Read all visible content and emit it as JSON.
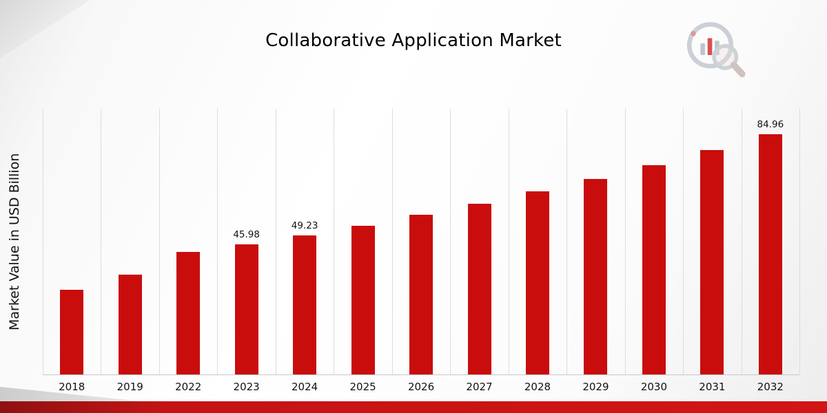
{
  "page": {
    "title": "Collaborative Application Market"
  },
  "chart_data": {
    "type": "bar",
    "title": "Collaborative Application Market",
    "xlabel": "",
    "ylabel": "Market Value in USD Billion",
    "categories": [
      "2018",
      "2019",
      "2022",
      "2023",
      "2024",
      "2025",
      "2026",
      "2027",
      "2028",
      "2029",
      "2030",
      "2031",
      "2032"
    ],
    "values": [
      29.9,
      35.2,
      43.3,
      45.98,
      49.23,
      52.7,
      56.4,
      60.4,
      64.7,
      69.2,
      74.1,
      79.3,
      84.96
    ],
    "point_labels": [
      "",
      "",
      "",
      "45.98",
      "49.23",
      "",
      "",
      "",
      "",
      "",
      "",
      "",
      "84.96"
    ],
    "ylim": [
      0,
      94
    ],
    "bar_color": "#c90d0d",
    "grid": "vertical-only",
    "legend": "none"
  },
  "branding": {
    "logo_name": "bar-chart-magnifier-logo"
  },
  "colors": {
    "bar": "#c90d0d",
    "bottom_strip_dark": "#8e1111",
    "bottom_strip_bright": "#d21515",
    "gridline": "#dcdcdc"
  }
}
